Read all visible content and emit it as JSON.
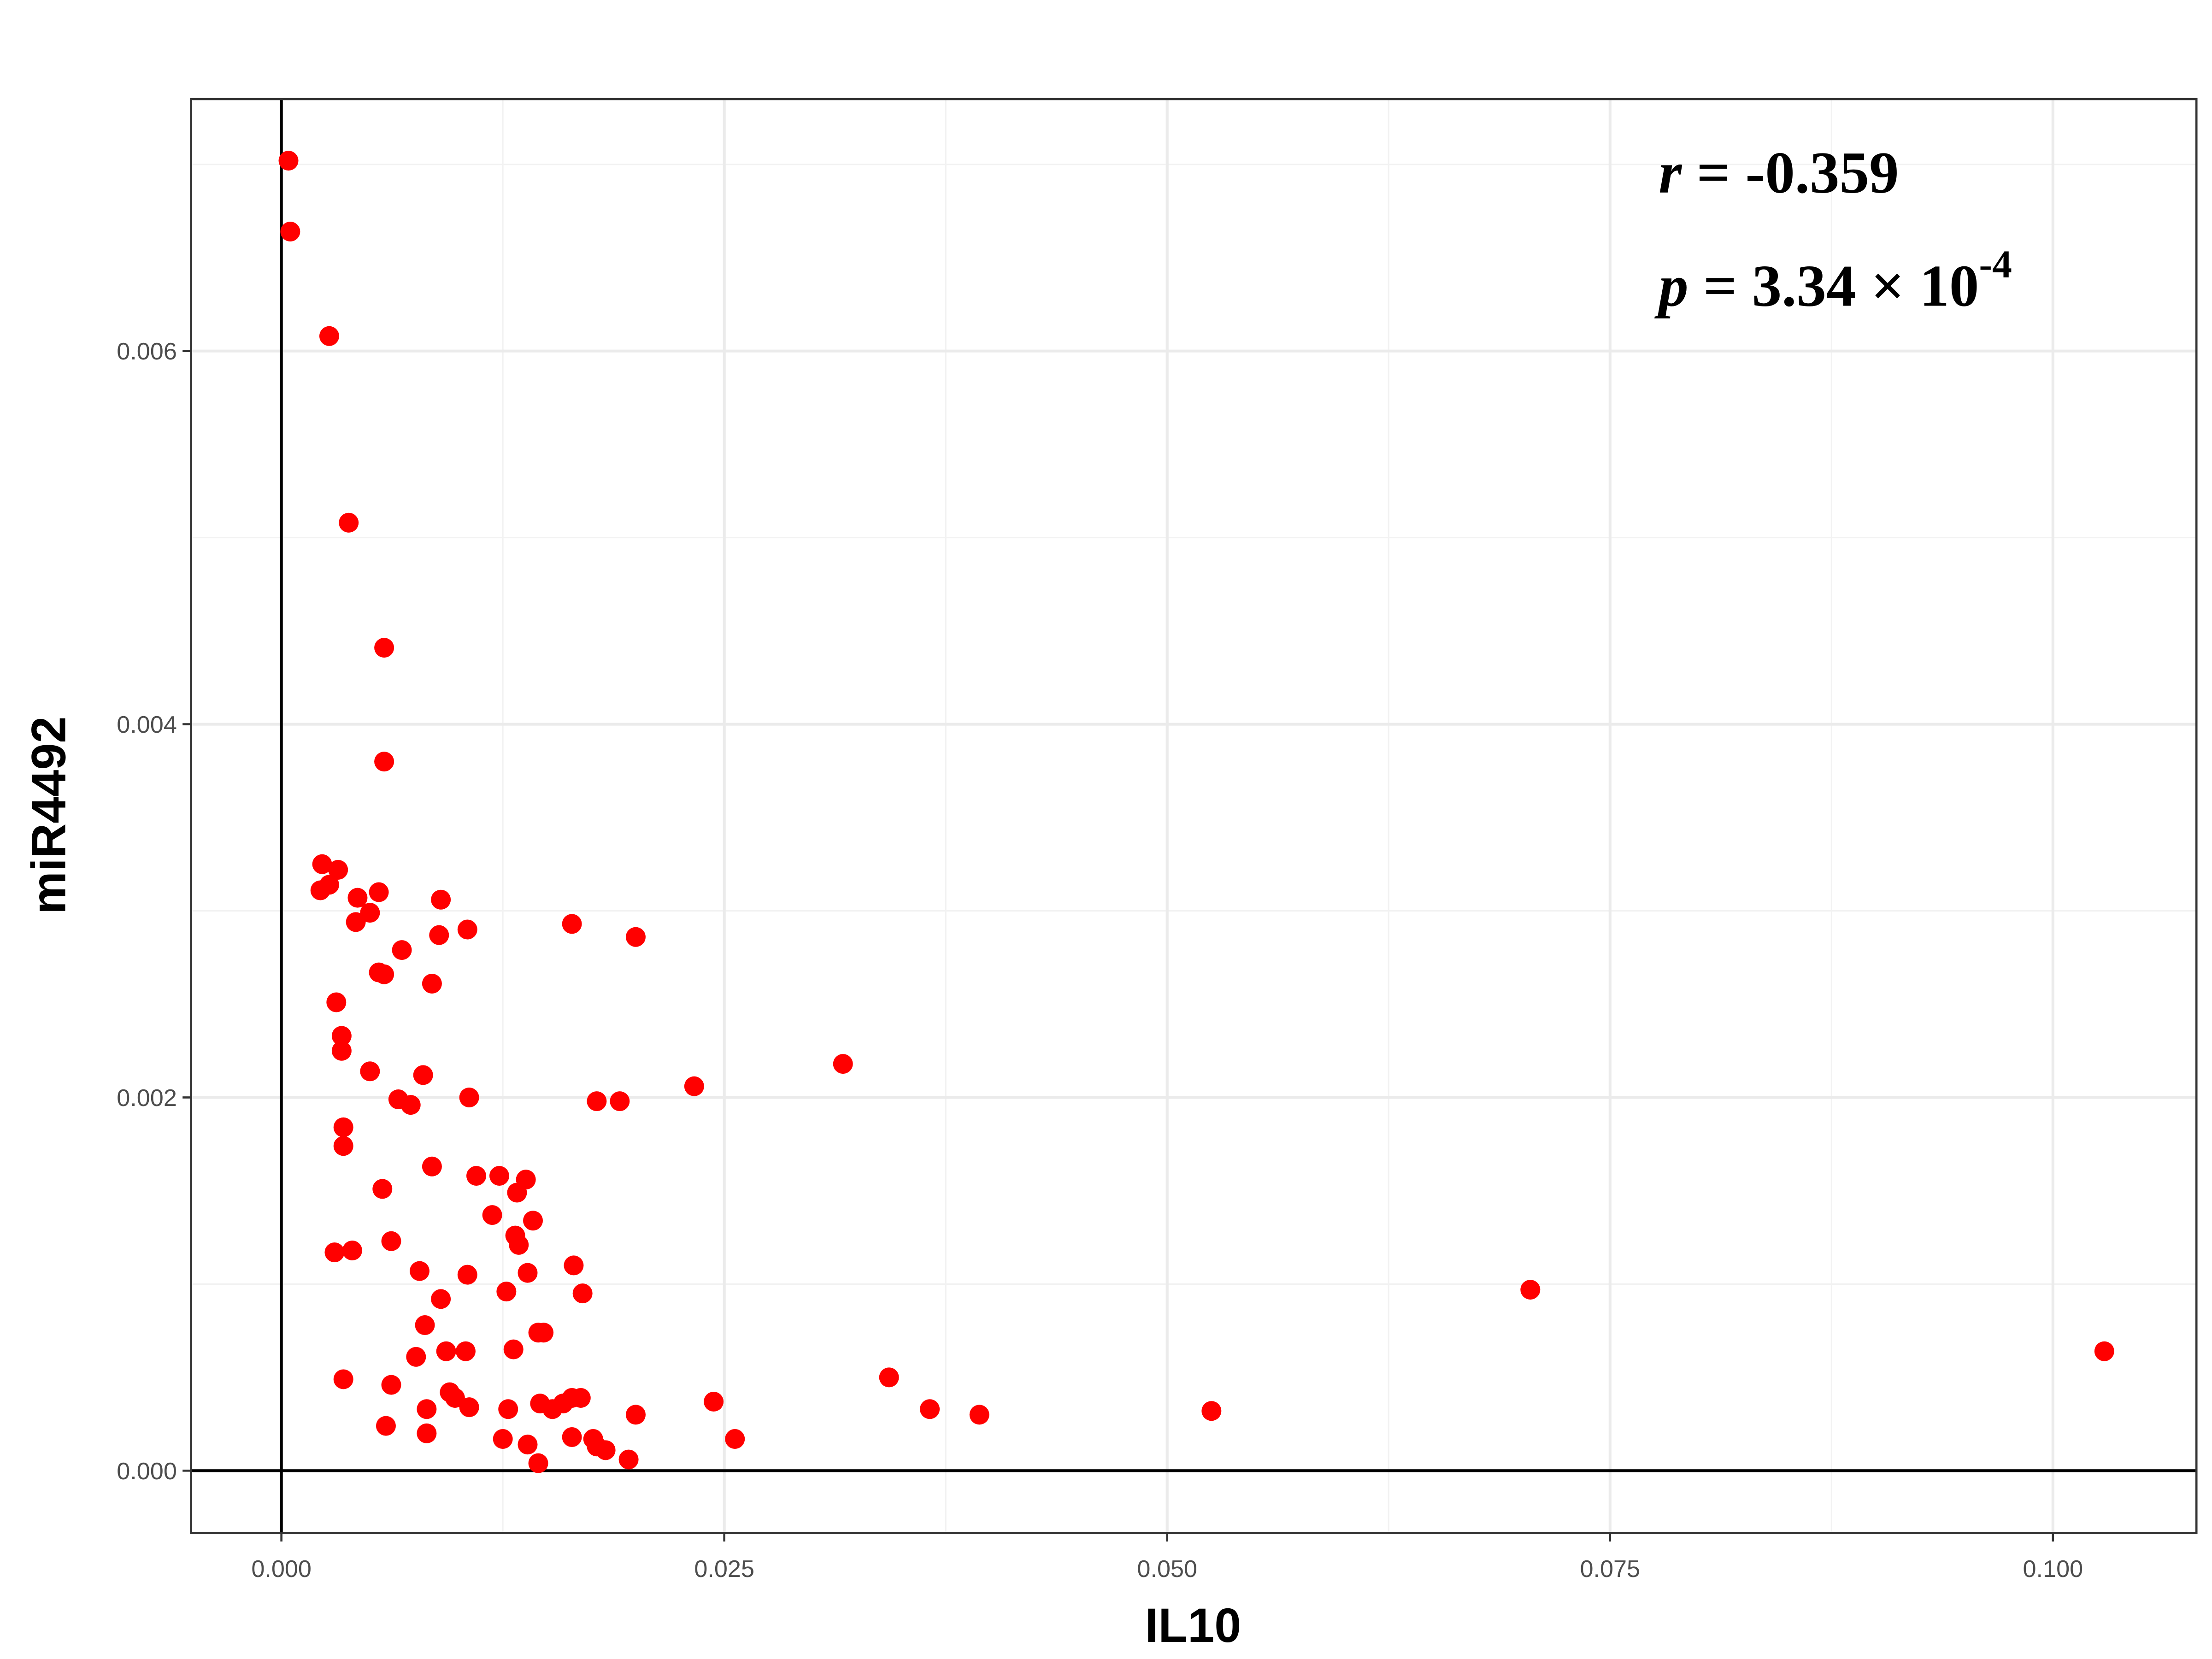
{
  "chart_data": {
    "type": "scatter",
    "x_label": "IL10",
    "y_label": "miR4492",
    "color": "#ff0000",
    "grid": true,
    "minor_grid": true,
    "zero_lines": true,
    "xlim": [
      -0.0051,
      0.1081
    ],
    "ylim": [
      -0.000334,
      0.00735
    ],
    "xticks": [
      {
        "value": 0,
        "label": "0.000"
      },
      0.025,
      {
        "value": 0.05,
        "label": "0.050"
      },
      0.075,
      {
        "value": 0.1,
        "label": "0.100"
      }
    ],
    "yticks": [
      {
        "value": 0,
        "label": "0.000"
      },
      0.002,
      0.004,
      0.006
    ],
    "annotations": [
      {
        "symbol": "r",
        "text": " = -0.359"
      },
      {
        "symbol": "p",
        "text": " = 3.34 × 10",
        "superscript": "-4"
      }
    ],
    "x": [
      0.0004,
      0.0005,
      0.0027,
      0.0038,
      0.0058,
      0.0058,
      0.0023,
      0.0032,
      0.0027,
      0.0022,
      0.0043,
      0.0055,
      0.009,
      0.005,
      0.0042,
      0.0164,
      0.02,
      0.0105,
      0.0089,
      0.0068,
      0.0055,
      0.0058,
      0.0085,
      0.0031,
      0.0034,
      0.0034,
      0.005,
      0.008,
      0.0317,
      0.0233,
      0.0106,
      0.0066,
      0.0073,
      0.0178,
      0.0191,
      0.0035,
      0.0035,
      0.0085,
      0.011,
      0.0123,
      0.0138,
      0.0133,
      0.0057,
      0.0119,
      0.0142,
      0.0132,
      0.0134,
      0.0062,
      0.003,
      0.004,
      0.0165,
      0.0078,
      0.0105,
      0.0139,
      0.0127,
      0.017,
      0.009,
      0.0705,
      0.0081,
      0.0145,
      0.0148,
      0.0131,
      0.1029,
      0.0093,
      0.0104,
      0.0076,
      0.0035,
      0.0062,
      0.0343,
      0.0095,
      0.0098,
      0.0146,
      0.0164,
      0.0169,
      0.0159,
      0.0244,
      0.0153,
      0.0106,
      0.0082,
      0.0128,
      0.0366,
      0.0394,
      0.0525,
      0.02,
      0.0059,
      0.0082,
      0.0164,
      0.0125,
      0.0139,
      0.0176,
      0.0183,
      0.0178,
      0.0256,
      0.0196,
      0.0145
    ],
    "values": [
      0.00702,
      0.00664,
      0.00608,
      0.00508,
      0.00441,
      0.0038,
      0.00325,
      0.00322,
      0.00314,
      0.00311,
      0.00307,
      0.0031,
      0.00306,
      0.00299,
      0.00294,
      0.00293,
      0.00286,
      0.0029,
      0.00287,
      0.00279,
      0.00267,
      0.00266,
      0.00261,
      0.00251,
      0.00233,
      0.00225,
      0.00214,
      0.00212,
      0.00218,
      0.00206,
      0.002,
      0.00199,
      0.00196,
      0.00198,
      0.00198,
      0.00184,
      0.00174,
      0.00163,
      0.00158,
      0.00158,
      0.00156,
      0.00149,
      0.00151,
      0.00137,
      0.00134,
      0.00126,
      0.00121,
      0.00123,
      0.00117,
      0.00118,
      0.0011,
      0.00107,
      0.00105,
      0.00106,
      0.00096,
      0.00095,
      0.00092,
      0.00097,
      0.00078,
      0.00074,
      0.00074,
      0.00065,
      0.00064,
      0.00064,
      0.00064,
      0.00061,
      0.00049,
      0.00046,
      0.0005,
      0.00042,
      0.00039,
      0.00036,
      0.00039,
      0.00039,
      0.00036,
      0.00037,
      0.00033,
      0.00034,
      0.00033,
      0.00033,
      0.00033,
      0.0003,
      0.00032,
      0.0003,
      0.00024,
      0.0002,
      0.00018,
      0.00017,
      0.00014,
      0.00017,
      0.00011,
      0.00013,
      0.00017,
      6e-05,
      4e-05
    ]
  }
}
